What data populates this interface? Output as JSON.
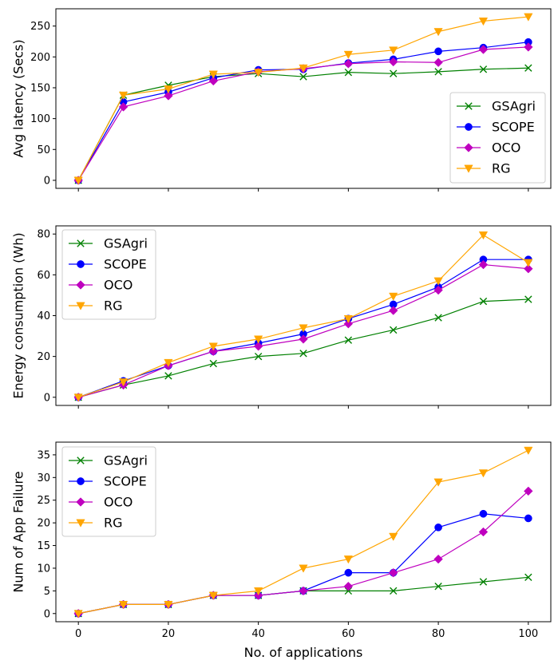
{
  "chart_data": [
    {
      "type": "line",
      "x": [
        0,
        10,
        20,
        30,
        40,
        50,
        60,
        70,
        80,
        90,
        100
      ],
      "xticks": [
        0,
        20,
        40,
        60,
        80,
        100
      ],
      "xlim": [
        -5,
        105
      ],
      "ylim": [
        -13,
        278
      ],
      "yticks": [
        0,
        50,
        100,
        150,
        200,
        250
      ],
      "xlabel": "",
      "ylabel": "Avg latency (Secs)",
      "legend": "lower-right",
      "series": [
        {
          "name": "GSAgri",
          "marker": "x",
          "color": "#008000",
          "values": [
            0,
            138,
            154,
            168,
            173,
            168,
            175,
            173,
            176,
            180,
            182
          ]
        },
        {
          "name": "SCOPE",
          "marker": "circle",
          "color": "#0000ff",
          "values": [
            0,
            127,
            143,
            166,
            179,
            180,
            190,
            196,
            209,
            215,
            224
          ]
        },
        {
          "name": "OCO",
          "marker": "diamond",
          "color": "#bf00bf",
          "values": [
            0,
            119,
            137,
            161,
            176,
            181,
            189,
            192,
            191,
            212,
            216
          ]
        },
        {
          "name": "RG",
          "marker": "triangle-down",
          "color": "#ffa500",
          "values": [
            0,
            138,
            148,
            172,
            175,
            182,
            204,
            211,
            241,
            258,
            265
          ]
        }
      ]
    },
    {
      "type": "line",
      "x": [
        0,
        10,
        20,
        30,
        40,
        50,
        60,
        70,
        80,
        90,
        100
      ],
      "xticks": [
        0,
        20,
        40,
        60,
        80,
        100
      ],
      "xlim": [
        -5,
        105
      ],
      "ylim": [
        -4,
        84
      ],
      "yticks": [
        0,
        20,
        40,
        60,
        80
      ],
      "xlabel": "",
      "ylabel": "Energy consumption (Wh)",
      "legend": "upper-left",
      "series": [
        {
          "name": "GSAgri",
          "marker": "x",
          "color": "#008000",
          "values": [
            0,
            6,
            10.5,
            16.5,
            20,
            21.5,
            28,
            33,
            39,
            47,
            48
          ]
        },
        {
          "name": "SCOPE",
          "marker": "circle",
          "color": "#0000ff",
          "values": [
            0,
            8,
            15.5,
            22.5,
            26.5,
            31,
            38.5,
            45.5,
            54,
            67.5,
            67.5
          ]
        },
        {
          "name": "OCO",
          "marker": "diamond",
          "color": "#bf00bf",
          "values": [
            0,
            6,
            15.5,
            22.5,
            25,
            28.5,
            36,
            42.5,
            52.5,
            65,
            63
          ]
        },
        {
          "name": "RG",
          "marker": "triangle-down",
          "color": "#ffa500",
          "values": [
            0,
            7.5,
            17,
            25,
            28.5,
            34,
            38.5,
            49.5,
            57,
            79.5,
            66
          ]
        }
      ]
    },
    {
      "type": "line",
      "x": [
        0,
        10,
        20,
        30,
        40,
        50,
        60,
        70,
        80,
        90,
        100
      ],
      "xticks": [
        0,
        20,
        40,
        60,
        80,
        100
      ],
      "xlim": [
        -5,
        105
      ],
      "ylim": [
        -1.8,
        37.8
      ],
      "yticks": [
        0,
        5,
        10,
        15,
        20,
        25,
        30,
        35
      ],
      "xlabel": "No. of applications",
      "ylabel": "Num of App Failure",
      "legend": "upper-left",
      "series": [
        {
          "name": "GSAgri",
          "marker": "x",
          "color": "#008000",
          "values": [
            0,
            2,
            2,
            4,
            4,
            5,
            5,
            5,
            6,
            7,
            8
          ]
        },
        {
          "name": "SCOPE",
          "marker": "circle",
          "color": "#0000ff",
          "values": [
            0,
            2,
            2,
            4,
            4,
            5,
            9,
            9,
            19,
            22,
            21
          ]
        },
        {
          "name": "OCO",
          "marker": "diamond",
          "color": "#bf00bf",
          "values": [
            0,
            2,
            2,
            4,
            4,
            5,
            6,
            9,
            12,
            18,
            27
          ]
        },
        {
          "name": "RG",
          "marker": "triangle-down",
          "color": "#ffa500",
          "values": [
            0,
            2,
            2,
            4,
            5,
            10,
            12,
            17,
            29,
            31,
            36
          ]
        }
      ]
    }
  ]
}
